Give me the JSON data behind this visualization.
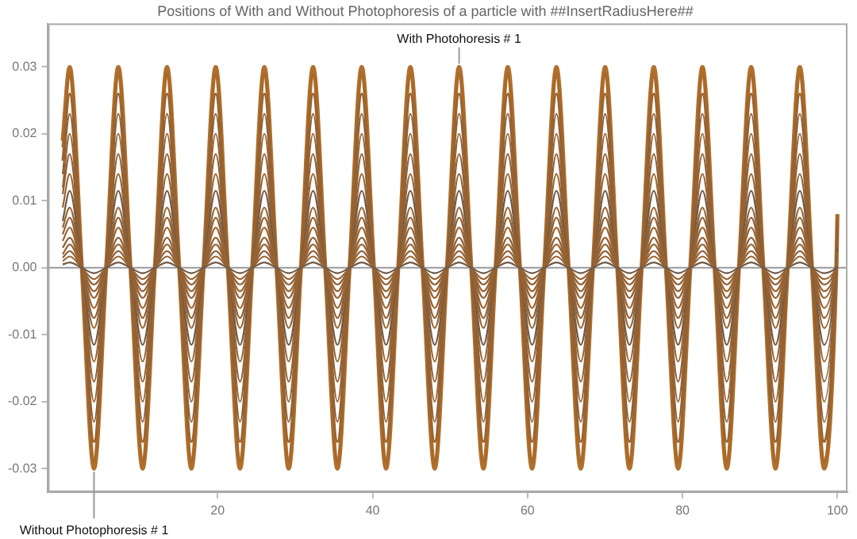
{
  "chart_data": {
    "type": "line",
    "title": "Positions of With and Without Photophoresis of a particle with ##InsertRadiusHere##",
    "x": [
      0,
      0.9,
      2.47,
      4.04,
      5.61,
      7.18,
      8.75,
      10.32,
      11.9,
      13.47,
      15.04,
      16.61,
      18.18,
      19.75,
      21.32,
      22.89,
      24.46,
      26.03,
      27.6,
      29.17,
      30.75,
      32.32,
      33.89,
      35.46,
      37.03,
      38.6,
      40.17,
      41.74,
      43.31,
      44.88,
      46.45,
      48.02,
      49.6,
      51.17,
      52.74,
      54.31,
      55.88,
      57.45,
      59.02,
      60.59,
      62.16,
      63.73,
      65.3,
      66.87,
      68.44,
      70.02,
      71.59,
      73.16,
      74.73,
      76.3,
      77.87,
      79.44,
      81.01,
      82.58,
      84.15,
      85.72,
      87.29,
      88.87,
      90.44,
      92.01,
      93.58,
      95.15,
      96.72,
      98.29,
      99.86,
      100
    ],
    "series": [
      {
        "color": "#b0702c",
        "values": [
          0.019,
          0.03,
          0,
          -0.03,
          0,
          0.03,
          0,
          -0.03,
          0,
          0.03,
          0,
          -0.03,
          0,
          0.03,
          0,
          -0.03,
          0,
          0.03,
          0,
          -0.03,
          0,
          0.03,
          0,
          -0.03,
          0,
          0.03,
          0,
          -0.03,
          0,
          0.03,
          0,
          -0.03,
          0,
          0.03,
          0,
          -0.03,
          0,
          0.03,
          0,
          -0.03,
          0,
          0.03,
          0,
          -0.03,
          0,
          0.03,
          0,
          -0.03,
          0,
          0.03,
          0,
          -0.03,
          0,
          0.03,
          0,
          -0.03,
          0,
          0.03,
          0,
          -0.03,
          0,
          0.03,
          0,
          -0.03,
          0,
          0.008
        ]
      },
      {
        "color": "#a8692a",
        "values": [
          0.018,
          0.029,
          0,
          -0.029,
          0,
          0.029,
          0,
          -0.029,
          0,
          0.029,
          0,
          -0.029,
          0,
          0.029,
          0,
          -0.029,
          0,
          0.029,
          0,
          -0.029,
          0,
          0.029,
          0,
          -0.029,
          0,
          0.029,
          0,
          -0.029,
          0,
          0.029,
          0,
          -0.029,
          0,
          0.029,
          0,
          -0.029,
          0,
          0.029,
          0,
          -0.029,
          0,
          0.029,
          0,
          -0.029,
          0,
          0.029,
          0,
          -0.029,
          0,
          0.029,
          0,
          -0.029,
          0,
          0.029,
          0,
          -0.029,
          0,
          0.029,
          0,
          -0.029,
          0,
          0.029,
          0,
          -0.029,
          0,
          0.008
        ]
      },
      {
        "color": "#9a6430",
        "values": [
          0.016,
          0.026,
          0,
          -0.026,
          0,
          0.026,
          0,
          -0.026,
          0,
          0.026,
          0,
          -0.026,
          0,
          0.026,
          0,
          -0.026,
          0,
          0.026,
          0,
          -0.026,
          0,
          0.026,
          0,
          -0.026,
          0,
          0.026,
          0,
          -0.026,
          0,
          0.026,
          0,
          -0.026,
          0,
          0.026,
          0,
          -0.026,
          0,
          0.026,
          0,
          -0.026,
          0,
          0.026,
          0,
          -0.026,
          0,
          0.026,
          0,
          -0.026,
          0,
          0.026,
          0,
          -0.026,
          0,
          0.026,
          0,
          -0.026,
          0,
          0.026,
          0,
          -0.026,
          0,
          0.026,
          0,
          -0.026,
          0,
          0.007
        ]
      },
      {
        "color": "#8f6038",
        "values": [
          0.014,
          0.023,
          0,
          -0.023,
          0,
          0.023,
          0,
          -0.023,
          0,
          0.023,
          0,
          -0.023,
          0,
          0.023,
          0,
          -0.023,
          0,
          0.023,
          0,
          -0.023,
          0,
          0.023,
          0,
          -0.023,
          0,
          0.023,
          0,
          -0.023,
          0,
          0.023,
          0,
          -0.023,
          0,
          0.023,
          0,
          -0.023,
          0,
          0.023,
          0,
          -0.023,
          0,
          0.023,
          0,
          -0.023,
          0,
          0.023,
          0,
          -0.023,
          0,
          0.023,
          0,
          -0.023,
          0,
          0.023,
          0,
          -0.023,
          0,
          0.023,
          0,
          -0.023,
          0,
          0.023,
          0,
          -0.023,
          0,
          0.006
        ]
      },
      {
        "color": "#9a6430",
        "values": [
          0.012,
          0.02,
          0,
          -0.02,
          0,
          0.02,
          0,
          -0.02,
          0,
          0.02,
          0,
          -0.02,
          0,
          0.02,
          0,
          -0.02,
          0,
          0.02,
          0,
          -0.02,
          0,
          0.02,
          0,
          -0.02,
          0,
          0.02,
          0,
          -0.02,
          0,
          0.02,
          0,
          -0.02,
          0,
          0.02,
          0,
          -0.02,
          0,
          0.02,
          0,
          -0.02,
          0,
          0.02,
          0,
          -0.02,
          0,
          0.02,
          0,
          -0.02,
          0,
          0.02,
          0,
          -0.02,
          0,
          0.02,
          0,
          -0.02,
          0,
          0.02,
          0,
          -0.02,
          0,
          0.02,
          0,
          -0.02,
          0,
          0.005
        ]
      },
      {
        "color": "#8f6038",
        "values": [
          0.011,
          0.017,
          0,
          -0.017,
          0,
          0.017,
          0,
          -0.017,
          0,
          0.017,
          0,
          -0.017,
          0,
          0.017,
          0,
          -0.017,
          0,
          0.017,
          0,
          -0.017,
          0,
          0.017,
          0,
          -0.017,
          0,
          0.017,
          0,
          -0.017,
          0,
          0.017,
          0,
          -0.017,
          0,
          0.017,
          0,
          -0.017,
          0,
          0.017,
          0,
          -0.017,
          0,
          0.017,
          0,
          -0.017,
          0,
          0.017,
          0,
          -0.017,
          0,
          0.017,
          0,
          -0.017,
          0,
          0.017,
          0,
          -0.017,
          0,
          0.017,
          0,
          -0.017,
          0,
          0.017,
          0,
          -0.017,
          0,
          0.0045
        ]
      },
      {
        "color": "#9a6430",
        "values": [
          0.009,
          0.014,
          0,
          -0.014,
          0,
          0.014,
          0,
          -0.014,
          0,
          0.014,
          0,
          -0.014,
          0,
          0.014,
          0,
          -0.014,
          0,
          0.014,
          0,
          -0.014,
          0,
          0.014,
          0,
          -0.014,
          0,
          0.014,
          0,
          -0.014,
          0,
          0.014,
          0,
          -0.014,
          0,
          0.014,
          0,
          -0.014,
          0,
          0.014,
          0,
          -0.014,
          0,
          0.014,
          0,
          -0.014,
          0,
          0.014,
          0,
          -0.014,
          0,
          0.014,
          0,
          -0.014,
          0,
          0.014,
          0,
          -0.014,
          0,
          0.014,
          0,
          -0.014,
          0,
          0.014,
          0,
          -0.014,
          0,
          0.004
        ]
      },
      {
        "color": "#6f5a48",
        "values": [
          0.007,
          0.0115,
          0,
          -0.0115,
          0,
          0.0115,
          0,
          -0.0115,
          0,
          0.0115,
          0,
          -0.0115,
          0,
          0.0115,
          0,
          -0.0115,
          0,
          0.0115,
          0,
          -0.0115,
          0,
          0.0115,
          0,
          -0.0115,
          0,
          0.0115,
          0,
          -0.0115,
          0,
          0.0115,
          0,
          -0.0115,
          0,
          0.0115,
          0,
          -0.0115,
          0,
          0.0115,
          0,
          -0.0115,
          0,
          0.0115,
          0,
          -0.0115,
          0,
          0.0115,
          0,
          -0.0115,
          0,
          0.0115,
          0,
          -0.0115,
          0,
          0.0115,
          0,
          -0.0115,
          0,
          0.0115,
          0,
          -0.0115,
          0,
          0.0115,
          0,
          -0.0115,
          0,
          0.003
        ]
      },
      {
        "color": "#9a6430",
        "values": [
          0.006,
          0.009,
          0,
          -0.009,
          0,
          0.009,
          0,
          -0.009,
          0,
          0.009,
          0,
          -0.009,
          0,
          0.009,
          0,
          -0.009,
          0,
          0.009,
          0,
          -0.009,
          0,
          0.009,
          0,
          -0.009,
          0,
          0.009,
          0,
          -0.009,
          0,
          0.009,
          0,
          -0.009,
          0,
          0.009,
          0,
          -0.009,
          0,
          0.009,
          0,
          -0.009,
          0,
          0.009,
          0,
          -0.009,
          0,
          0.009,
          0,
          -0.009,
          0,
          0.009,
          0,
          -0.009,
          0,
          0.009,
          0,
          -0.009,
          0,
          0.009,
          0,
          -0.009,
          0,
          0.009,
          0,
          -0.009,
          0,
          0.0025
        ]
      },
      {
        "color": "#8f6038",
        "values": [
          0.005,
          0.0075,
          0,
          -0.0075,
          0,
          0.0075,
          0,
          -0.0075,
          0,
          0.0075,
          0,
          -0.0075,
          0,
          0.0075,
          0,
          -0.0075,
          0,
          0.0075,
          0,
          -0.0075,
          0,
          0.0075,
          0,
          -0.0075,
          0,
          0.0075,
          0,
          -0.0075,
          0,
          0.0075,
          0,
          -0.0075,
          0,
          0.0075,
          0,
          -0.0075,
          0,
          0.0075,
          0,
          -0.0075,
          0,
          0.0075,
          0,
          -0.0075,
          0,
          0.0075,
          0,
          -0.0075,
          0,
          0.0075,
          0,
          -0.0075,
          0,
          0.0075,
          0,
          -0.0075,
          0,
          0.0075,
          0,
          -0.0075,
          0,
          0.0075,
          0,
          -0.0075,
          0,
          0.002
        ]
      },
      {
        "color": "#9a6430",
        "values": [
          0.004,
          0.006,
          0,
          -0.006,
          0,
          0.006,
          0,
          -0.006,
          0,
          0.006,
          0,
          -0.006,
          0,
          0.006,
          0,
          -0.006,
          0,
          0.006,
          0,
          -0.006,
          0,
          0.006,
          0,
          -0.006,
          0,
          0.006,
          0,
          -0.006,
          0,
          0.006,
          0,
          -0.006,
          0,
          0.006,
          0,
          -0.006,
          0,
          0.006,
          0,
          -0.006,
          0,
          0.006,
          0,
          -0.006,
          0,
          0.006,
          0,
          -0.006,
          0,
          0.006,
          0,
          -0.006,
          0,
          0.006,
          0,
          -0.006,
          0,
          0.006,
          0,
          -0.006,
          0,
          0.006,
          0,
          -0.006,
          0,
          0.0015
        ]
      },
      {
        "color": "#8f6038",
        "values": [
          0.003,
          0.0045,
          0,
          -0.0045,
          0,
          0.0045,
          0,
          -0.0045,
          0,
          0.0045,
          0,
          -0.0045,
          0,
          0.0045,
          0,
          -0.0045,
          0,
          0.0045,
          0,
          -0.0045,
          0,
          0.0045,
          0,
          -0.0045,
          0,
          0.0045,
          0,
          -0.0045,
          0,
          0.0045,
          0,
          -0.0045,
          0,
          0.0045,
          0,
          -0.0045,
          0,
          0.0045,
          0,
          -0.0045,
          0,
          0.0045,
          0,
          -0.0045,
          0,
          0.0045,
          0,
          -0.0045,
          0,
          0.0045,
          0,
          -0.0045,
          0,
          0.0045,
          0,
          -0.0045,
          0,
          0.0045,
          0,
          -0.0045,
          0,
          0.0045,
          0,
          -0.0045,
          0,
          0.0012
        ]
      },
      {
        "color": "#9a6430",
        "values": [
          0.002,
          0.0035,
          0,
          -0.0035,
          0,
          0.0035,
          0,
          -0.0035,
          0,
          0.0035,
          0,
          -0.0035,
          0,
          0.0035,
          0,
          -0.0035,
          0,
          0.0035,
          0,
          -0.0035,
          0,
          0.0035,
          0,
          -0.0035,
          0,
          0.0035,
          0,
          -0.0035,
          0,
          0.0035,
          0,
          -0.0035,
          0,
          0.0035,
          0,
          -0.0035,
          0,
          0.0035,
          0,
          -0.0035,
          0,
          0.0035,
          0,
          -0.0035,
          0,
          0.0035,
          0,
          -0.0035,
          0,
          0.0035,
          0,
          -0.0035,
          0,
          0.0035,
          0,
          -0.0035,
          0,
          0.0035,
          0,
          -0.0035,
          0,
          0.0035,
          0,
          -0.0035,
          0,
          0.001
        ]
      },
      {
        "color": "#8f6038",
        "values": [
          0.0015,
          0.0025,
          0,
          -0.0025,
          0,
          0.0025,
          0,
          -0.0025,
          0,
          0.0025,
          0,
          -0.0025,
          0,
          0.0025,
          0,
          -0.0025,
          0,
          0.0025,
          0,
          -0.0025,
          0,
          0.0025,
          0,
          -0.0025,
          0,
          0.0025,
          0,
          -0.0025,
          0,
          0.0025,
          0,
          -0.0025,
          0,
          0.0025,
          0,
          -0.0025,
          0,
          0.0025,
          0,
          -0.0025,
          0,
          0.0025,
          0,
          -0.0025,
          0,
          0.0025,
          0,
          -0.0025,
          0,
          0.0025,
          0,
          -0.0025,
          0,
          0.0025,
          0,
          -0.0025,
          0,
          0.0025,
          0,
          -0.0025,
          0,
          0.0025,
          0,
          -0.0025,
          0,
          0.0007
        ]
      },
      {
        "color": "#9a6430",
        "values": [
          0.001,
          0.0017,
          0,
          -0.0017,
          0,
          0.0017,
          0,
          -0.0017,
          0,
          0.0017,
          0,
          -0.0017,
          0,
          0.0017,
          0,
          -0.0017,
          0,
          0.0017,
          0,
          -0.0017,
          0,
          0.0017,
          0,
          -0.0017,
          0,
          0.0017,
          0,
          -0.0017,
          0,
          0.0017,
          0,
          -0.0017,
          0,
          0.0017,
          0,
          -0.0017,
          0,
          0.0017,
          0,
          -0.0017,
          0,
          0.0017,
          0,
          -0.0017,
          0,
          0.0017,
          0,
          -0.0017,
          0,
          0.0017,
          0,
          -0.0017,
          0,
          0.0017,
          0,
          -0.0017,
          0,
          0.0017,
          0,
          -0.0017,
          0,
          0.0017,
          0,
          -0.0017,
          0,
          0.0005
        ]
      },
      {
        "color": "#6f5a48",
        "values": [
          0.0005,
          0.0008,
          0,
          -0.0008,
          0,
          0.0008,
          0,
          -0.0008,
          0,
          0.0008,
          0,
          -0.0008,
          0,
          0.0008,
          0,
          -0.0008,
          0,
          0.0008,
          0,
          -0.0008,
          0,
          0.0008,
          0,
          -0.0008,
          0,
          0.0008,
          0,
          -0.0008,
          0,
          0.0008,
          0,
          -0.0008,
          0,
          0.0008,
          0,
          -0.0008,
          0,
          0.0008,
          0,
          -0.0008,
          0,
          0.0008,
          0,
          -0.0008,
          0,
          0.0008,
          0,
          -0.0008,
          0,
          0.0008,
          0,
          -0.0008,
          0,
          0.0008,
          0,
          -0.0008,
          0,
          0.0008,
          0,
          -0.0008,
          0,
          0.0008,
          0,
          -0.0008,
          0,
          0.0002
        ]
      }
    ],
    "xlim": [
      -1.9,
      101.3
    ],
    "xticks": [
      20,
      40,
      60,
      80,
      100
    ],
    "ylim": [
      -0.0335,
      0.0365
    ],
    "yticks": [
      {
        "value": -0.03,
        "label": "-0.03"
      },
      {
        "value": -0.02,
        "label": "-0.02"
      },
      {
        "value": -0.01,
        "label": "-0.01"
      },
      {
        "value": 0,
        "label": "0.00"
      },
      {
        "value": 0.01,
        "label": "0.01"
      },
      {
        "value": 0.02,
        "label": "0.02"
      },
      {
        "value": 0.03,
        "label": "0.03"
      }
    ],
    "ref_lines": [
      {
        "axis": "y",
        "value": 0,
        "color": "#999999"
      }
    ],
    "annotations": [
      {
        "text": "With Photohoresis # 1",
        "x": 51.17,
        "y": 0.03
      },
      {
        "text": "Without Photophoresis # 1",
        "x": 4.04,
        "y": -0.03
      }
    ],
    "grid": false,
    "legend": false,
    "marker": "none",
    "line_style": "solid"
  }
}
